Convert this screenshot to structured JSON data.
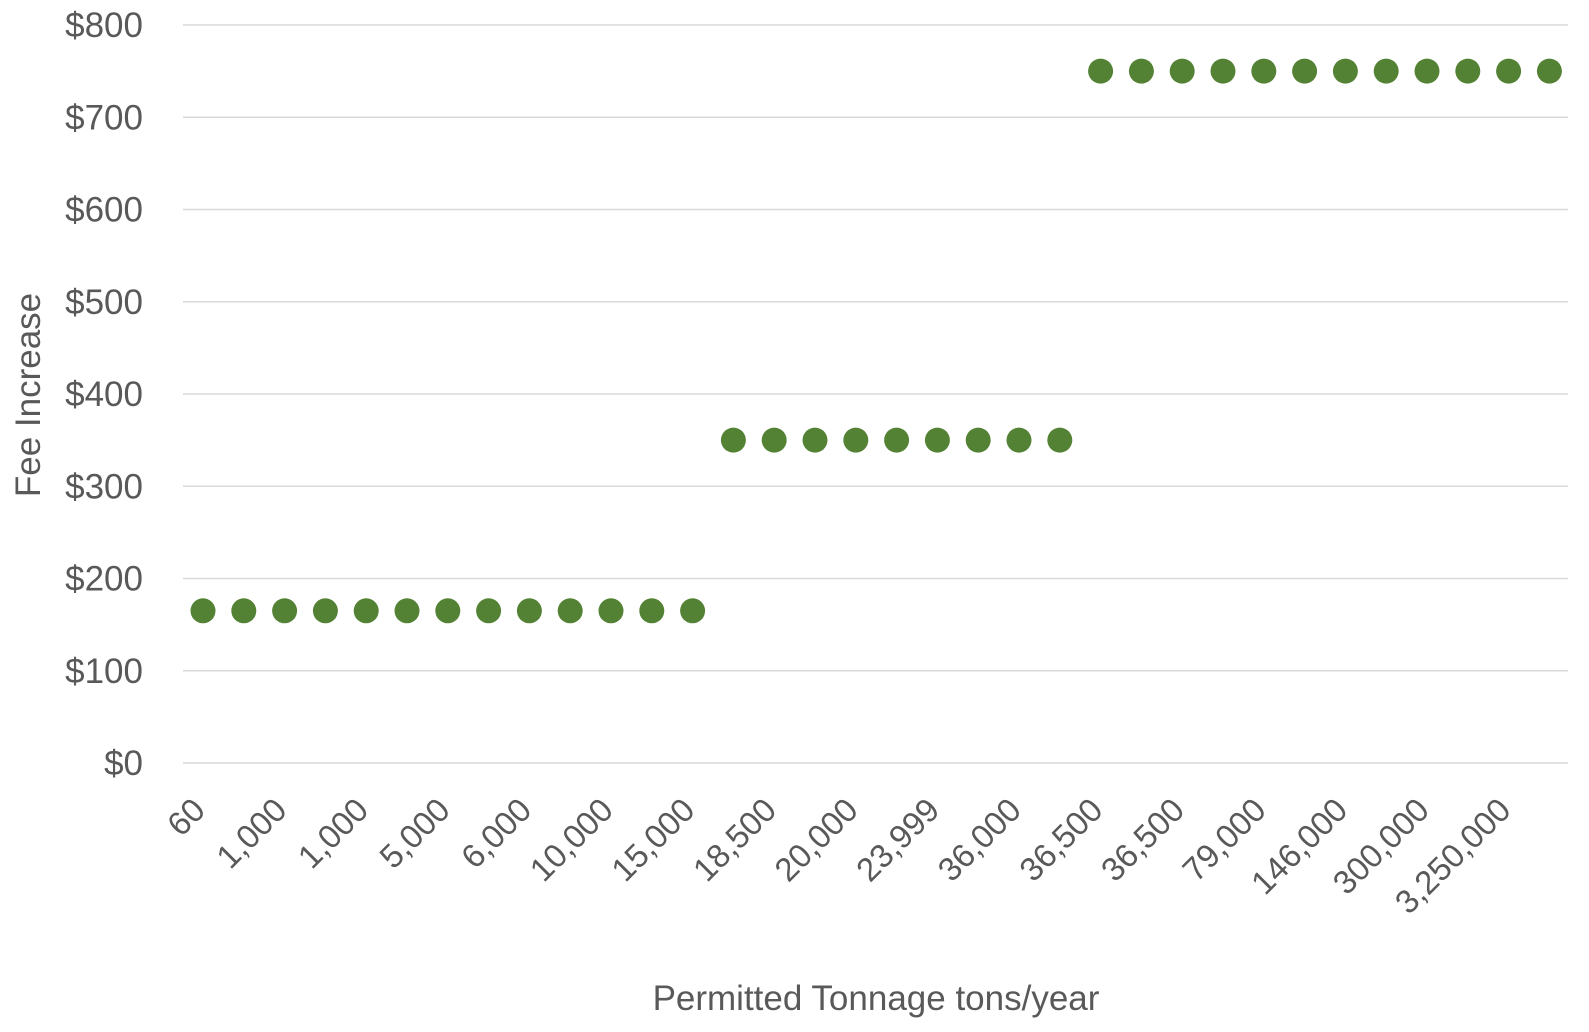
{
  "chart_data": {
    "type": "scatter",
    "xlabel": "Permitted Tonnage tons/year",
    "ylabel": "Fee Increase",
    "ylim": [
      0,
      800
    ],
    "y_ticks": [
      "$0",
      "$100",
      "$200",
      "$300",
      "$400",
      "$500",
      "$600",
      "$700",
      "$800"
    ],
    "x_tick_labels": [
      "60",
      "1,000",
      "1,000",
      "5,000",
      "6,000",
      "10,000",
      "15,000",
      "18,500",
      "20,000",
      "23,999",
      "36,000",
      "36,500",
      "36,500",
      "79,000",
      "146,000",
      "300,000",
      "3,250,000"
    ],
    "grid": true,
    "marker_color": "#548235",
    "series": [
      {
        "values": [
          165,
          165,
          165,
          165,
          165,
          165,
          165,
          165,
          165,
          165,
          165,
          165,
          165,
          350,
          350,
          350,
          350,
          350,
          350,
          350,
          350,
          350,
          750,
          750,
          750,
          750,
          750,
          750,
          750,
          750,
          750,
          750,
          750,
          750
        ]
      }
    ]
  }
}
